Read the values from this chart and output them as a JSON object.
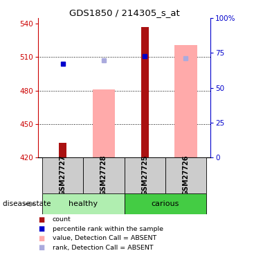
{
  "title": "GDS1850 / 214305_s_at",
  "samples": [
    "GSM27727",
    "GSM27728",
    "GSM27725",
    "GSM27726"
  ],
  "ylim_left": [
    420,
    545
  ],
  "ylim_right": [
    0,
    100
  ],
  "yticks_left": [
    420,
    450,
    480,
    510,
    540
  ],
  "yticks_right": [
    0,
    25,
    50,
    75,
    100
  ],
  "red_bar_tops": [
    433,
    420,
    537,
    420
  ],
  "pink_bar_tops": [
    420,
    481,
    420,
    521
  ],
  "blue_square_y": [
    504,
    null,
    511,
    null
  ],
  "light_blue_square_y": [
    null,
    507,
    null,
    509
  ],
  "red_bar_color": "#aa1111",
  "pink_bar_color": "#ffaaaa",
  "blue_square_color": "#0000cc",
  "light_blue_square_color": "#aaaadd",
  "left_axis_color": "#cc0000",
  "right_axis_color": "#0000cc",
  "dotted_line_y": [
    450,
    480,
    510
  ],
  "bar_base": 420,
  "pink_bar_width": 0.55,
  "red_bar_width": 0.18,
  "sample_area_color": "#cccccc",
  "healthy_bg": "#b0eeb0",
  "carious_bg": "#44cc44",
  "legend_items": [
    {
      "color": "#aa1111",
      "label": "count"
    },
    {
      "color": "#0000cc",
      "label": "percentile rank within the sample"
    },
    {
      "color": "#ffaaaa",
      "label": "value, Detection Call = ABSENT"
    },
    {
      "color": "#aaaadd",
      "label": "rank, Detection Call = ABSENT"
    }
  ]
}
